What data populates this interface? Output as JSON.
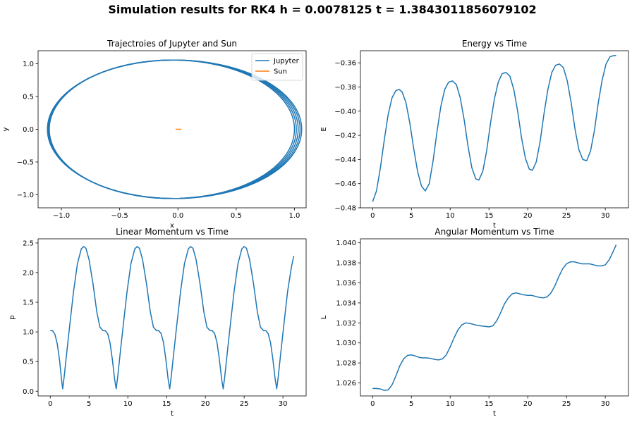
{
  "figure": {
    "title": "Simulation results for RK4 h = 0.0078125 t = 1.3843011856079102",
    "colors": {
      "series1": "#1f77b4",
      "series2": "#ff7f0e"
    }
  },
  "chart_data": [
    {
      "id": "trajectory",
      "type": "line",
      "title": "Trajectroies of Jupyter and Sun",
      "xlabel": "x",
      "ylabel": "y",
      "xlim": [
        -1.2,
        1.1
      ],
      "ylim": [
        -1.2,
        1.2
      ],
      "xticks": [
        -1.0,
        -0.5,
        0.0,
        0.5,
        1.0
      ],
      "xtick_labels": [
        "−1.0",
        "−0.5",
        "0.0",
        "0.5",
        "1.0"
      ],
      "yticks": [
        -1.0,
        -0.5,
        0.0,
        0.5,
        1.0
      ],
      "ytick_labels": [
        "−1.0",
        "−0.5",
        "0.0",
        "0.5",
        "1.0"
      ],
      "legend_position": "top-right",
      "series": [
        {
          "name": "Jupyter",
          "color": "#1f77b4",
          "kind": "ellipses",
          "orbits": [
            {
              "cx": -0.052,
              "cy": 0.0,
              "rx": 1.052,
              "ry": 1.058
            },
            {
              "cx": -0.046,
              "cy": 0.0,
              "rx": 1.062,
              "ry": 1.058
            },
            {
              "cx": -0.04,
              "cy": 0.0,
              "rx": 1.072,
              "ry": 1.058
            },
            {
              "cx": -0.034,
              "cy": 0.0,
              "rx": 1.082,
              "ry": 1.058
            },
            {
              "cx": -0.029,
              "cy": 0.0,
              "rx": 1.091,
              "ry": 1.058
            }
          ]
        },
        {
          "name": "Sun",
          "color": "#ff7f0e",
          "points": [
            [
              -0.02,
              0.0
            ],
            [
              0.03,
              0.0
            ]
          ]
        }
      ]
    },
    {
      "id": "energy",
      "type": "line",
      "title": "Energy vs Time",
      "xlabel": "t",
      "ylabel": "E",
      "xlim": [
        -1.57,
        32.99
      ],
      "ylim": [
        -0.48,
        -0.35
      ],
      "xticks": [
        0,
        5,
        10,
        15,
        20,
        25,
        30
      ],
      "xtick_labels": [
        "0",
        "5",
        "10",
        "15",
        "20",
        "25",
        "30"
      ],
      "yticks": [
        -0.48,
        -0.46,
        -0.44,
        -0.42,
        -0.4,
        -0.38,
        -0.36
      ],
      "ytick_labels": [
        "−0.48",
        "−0.46",
        "−0.44",
        "−0.42",
        "−0.40",
        "−0.38",
        "−0.36"
      ],
      "series": [
        {
          "color": "#1f77b4",
          "points": [
            [
              0.0,
              -0.475
            ],
            [
              0.5,
              -0.466
            ],
            [
              1.0,
              -0.447
            ],
            [
              1.5,
              -0.424
            ],
            [
              2.0,
              -0.403
            ],
            [
              2.5,
              -0.389
            ],
            [
              3.0,
              -0.383
            ],
            [
              3.4,
              -0.382
            ],
            [
              3.8,
              -0.384
            ],
            [
              4.3,
              -0.393
            ],
            [
              4.8,
              -0.41
            ],
            [
              5.3,
              -0.431
            ],
            [
              5.8,
              -0.45
            ],
            [
              6.3,
              -0.462
            ],
            [
              6.8,
              -0.466
            ],
            [
              7.3,
              -0.46
            ],
            [
              7.8,
              -0.441
            ],
            [
              8.3,
              -0.417
            ],
            [
              8.8,
              -0.396
            ],
            [
              9.3,
              -0.382
            ],
            [
              9.8,
              -0.376
            ],
            [
              10.3,
              -0.375
            ],
            [
              10.8,
              -0.378
            ],
            [
              11.3,
              -0.389
            ],
            [
              11.8,
              -0.407
            ],
            [
              12.3,
              -0.429
            ],
            [
              12.8,
              -0.447
            ],
            [
              13.3,
              -0.456
            ],
            [
              13.7,
              -0.457
            ],
            [
              14.2,
              -0.45
            ],
            [
              14.7,
              -0.433
            ],
            [
              15.2,
              -0.41
            ],
            [
              15.7,
              -0.39
            ],
            [
              16.2,
              -0.376
            ],
            [
              16.7,
              -0.369
            ],
            [
              17.2,
              -0.368
            ],
            [
              17.7,
              -0.371
            ],
            [
              18.2,
              -0.382
            ],
            [
              18.7,
              -0.4
            ],
            [
              19.2,
              -0.422
            ],
            [
              19.7,
              -0.439
            ],
            [
              20.2,
              -0.448
            ],
            [
              20.6,
              -0.449
            ],
            [
              21.1,
              -0.442
            ],
            [
              21.6,
              -0.425
            ],
            [
              22.1,
              -0.402
            ],
            [
              22.6,
              -0.382
            ],
            [
              23.1,
              -0.368
            ],
            [
              23.6,
              -0.362
            ],
            [
              24.1,
              -0.361
            ],
            [
              24.6,
              -0.364
            ],
            [
              25.1,
              -0.375
            ],
            [
              25.6,
              -0.393
            ],
            [
              26.1,
              -0.415
            ],
            [
              26.6,
              -0.432
            ],
            [
              27.1,
              -0.44
            ],
            [
              27.6,
              -0.441
            ],
            [
              28.1,
              -0.433
            ],
            [
              28.6,
              -0.416
            ],
            [
              29.1,
              -0.393
            ],
            [
              29.6,
              -0.374
            ],
            [
              30.1,
              -0.361
            ],
            [
              30.6,
              -0.355
            ],
            [
              31.1,
              -0.354
            ],
            [
              31.4,
              -0.354
            ]
          ]
        }
      ]
    },
    {
      "id": "linear-momentum",
      "type": "line",
      "title": "Linear Momentum vs Time",
      "xlabel": "t",
      "ylabel": "p",
      "xlim": [
        -1.57,
        32.99
      ],
      "ylim": [
        -0.08,
        2.57
      ],
      "xticks": [
        0,
        5,
        10,
        15,
        20,
        25,
        30
      ],
      "xtick_labels": [
        "0",
        "5",
        "10",
        "15",
        "20",
        "25",
        "30"
      ],
      "yticks": [
        0.0,
        0.5,
        1.0,
        1.5,
        2.0,
        2.5
      ],
      "ytick_labels": [
        "0.0",
        "0.5",
        "1.0",
        "1.5",
        "2.0",
        "2.5"
      ],
      "series": [
        {
          "color": "#1f77b4",
          "points": [
            [
              0.0,
              1.02
            ],
            [
              0.3,
              1.02
            ],
            [
              0.6,
              0.96
            ],
            [
              0.9,
              0.8
            ],
            [
              1.2,
              0.52
            ],
            [
              1.45,
              0.2
            ],
            [
              1.6,
              0.04
            ],
            [
              1.8,
              0.25
            ],
            [
              2.1,
              0.62
            ],
            [
              2.5,
              1.1
            ],
            [
              3.0,
              1.68
            ],
            [
              3.5,
              2.15
            ],
            [
              4.0,
              2.4
            ],
            [
              4.3,
              2.44
            ],
            [
              4.6,
              2.41
            ],
            [
              5.0,
              2.22
            ],
            [
              5.5,
              1.82
            ],
            [
              6.0,
              1.34
            ],
            [
              6.4,
              1.08
            ],
            [
              6.8,
              1.02
            ],
            [
              7.1,
              1.02
            ],
            [
              7.4,
              0.97
            ],
            [
              7.7,
              0.82
            ],
            [
              8.0,
              0.54
            ],
            [
              8.3,
              0.2
            ],
            [
              8.5,
              0.04
            ],
            [
              8.7,
              0.25
            ],
            [
              9.0,
              0.62
            ],
            [
              9.4,
              1.1
            ],
            [
              9.9,
              1.68
            ],
            [
              10.4,
              2.15
            ],
            [
              10.9,
              2.4
            ],
            [
              11.2,
              2.44
            ],
            [
              11.5,
              2.41
            ],
            [
              11.9,
              2.22
            ],
            [
              12.4,
              1.82
            ],
            [
              12.9,
              1.34
            ],
            [
              13.3,
              1.08
            ],
            [
              13.7,
              1.02
            ],
            [
              14.0,
              1.02
            ],
            [
              14.3,
              0.97
            ],
            [
              14.6,
              0.82
            ],
            [
              14.9,
              0.54
            ],
            [
              15.2,
              0.2
            ],
            [
              15.4,
              0.04
            ],
            [
              15.6,
              0.25
            ],
            [
              15.9,
              0.62
            ],
            [
              16.3,
              1.1
            ],
            [
              16.8,
              1.68
            ],
            [
              17.3,
              2.15
            ],
            [
              17.8,
              2.4
            ],
            [
              18.1,
              2.44
            ],
            [
              18.4,
              2.41
            ],
            [
              18.8,
              2.22
            ],
            [
              19.3,
              1.82
            ],
            [
              19.8,
              1.34
            ],
            [
              20.2,
              1.08
            ],
            [
              20.6,
              1.02
            ],
            [
              20.9,
              1.02
            ],
            [
              21.2,
              0.97
            ],
            [
              21.5,
              0.82
            ],
            [
              21.8,
              0.54
            ],
            [
              22.1,
              0.2
            ],
            [
              22.3,
              0.04
            ],
            [
              22.5,
              0.25
            ],
            [
              22.8,
              0.62
            ],
            [
              23.2,
              1.1
            ],
            [
              23.7,
              1.68
            ],
            [
              24.2,
              2.15
            ],
            [
              24.7,
              2.4
            ],
            [
              25.0,
              2.44
            ],
            [
              25.3,
              2.41
            ],
            [
              25.7,
              2.22
            ],
            [
              26.2,
              1.82
            ],
            [
              26.7,
              1.34
            ],
            [
              27.1,
              1.08
            ],
            [
              27.5,
              1.02
            ],
            [
              27.8,
              1.02
            ],
            [
              28.1,
              0.97
            ],
            [
              28.4,
              0.82
            ],
            [
              28.7,
              0.54
            ],
            [
              29.0,
              0.2
            ],
            [
              29.2,
              0.04
            ],
            [
              29.4,
              0.25
            ],
            [
              29.7,
              0.62
            ],
            [
              30.1,
              1.1
            ],
            [
              30.6,
              1.68
            ],
            [
              31.1,
              2.1
            ],
            [
              31.4,
              2.28
            ]
          ]
        }
      ]
    },
    {
      "id": "angular-momentum",
      "type": "line",
      "title": "Angular Momentum vs Time",
      "xlabel": "t",
      "ylabel": "L",
      "xlim": [
        -1.57,
        32.99
      ],
      "ylim": [
        1.0247,
        1.0404
      ],
      "xticks": [
        0,
        5,
        10,
        15,
        20,
        25,
        30
      ],
      "xtick_labels": [
        "0",
        "5",
        "10",
        "15",
        "20",
        "25",
        "30"
      ],
      "yticks": [
        1.026,
        1.028,
        1.03,
        1.032,
        1.034,
        1.036,
        1.038,
        1.04
      ],
      "ytick_labels": [
        "1.026",
        "1.028",
        "1.030",
        "1.032",
        "1.034",
        "1.036",
        "1.038",
        "1.040"
      ],
      "series": [
        {
          "color": "#1f77b4",
          "points": [
            [
              0.0,
              1.02545
            ],
            [
              0.5,
              1.02545
            ],
            [
              1.0,
              1.0254
            ],
            [
              1.5,
              1.02525
            ],
            [
              2.0,
              1.0253
            ],
            [
              2.5,
              1.0258
            ],
            [
              3.0,
              1.0267
            ],
            [
              3.5,
              1.0277
            ],
            [
              4.0,
              1.0284
            ],
            [
              4.5,
              1.02875
            ],
            [
              5.0,
              1.0288
            ],
            [
              5.5,
              1.0287
            ],
            [
              6.0,
              1.02855
            ],
            [
              6.5,
              1.0285
            ],
            [
              7.0,
              1.0285
            ],
            [
              7.5,
              1.02845
            ],
            [
              8.0,
              1.02835
            ],
            [
              8.5,
              1.0283
            ],
            [
              9.0,
              1.0284
            ],
            [
              9.5,
              1.0288
            ],
            [
              10.0,
              1.0296
            ],
            [
              10.5,
              1.0305
            ],
            [
              11.0,
              1.0313
            ],
            [
              11.5,
              1.0318
            ],
            [
              12.0,
              1.032
            ],
            [
              12.5,
              1.03195
            ],
            [
              13.0,
              1.03185
            ],
            [
              13.5,
              1.03175
            ],
            [
              14.0,
              1.0317
            ],
            [
              14.5,
              1.03165
            ],
            [
              15.0,
              1.0316
            ],
            [
              15.5,
              1.0317
            ],
            [
              16.0,
              1.0322
            ],
            [
              16.5,
              1.033
            ],
            [
              17.0,
              1.0339
            ],
            [
              17.5,
              1.0345
            ],
            [
              18.0,
              1.0349
            ],
            [
              18.5,
              1.035
            ],
            [
              19.0,
              1.0349
            ],
            [
              19.5,
              1.0348
            ],
            [
              20.0,
              1.03475
            ],
            [
              20.5,
              1.03475
            ],
            [
              21.0,
              1.03465
            ],
            [
              21.5,
              1.03455
            ],
            [
              22.0,
              1.0345
            ],
            [
              22.5,
              1.0346
            ],
            [
              23.0,
              1.035
            ],
            [
              23.5,
              1.0357
            ],
            [
              24.0,
              1.0366
            ],
            [
              24.5,
              1.0374
            ],
            [
              25.0,
              1.0379
            ],
            [
              25.5,
              1.0381
            ],
            [
              26.0,
              1.0381
            ],
            [
              26.5,
              1.038
            ],
            [
              27.0,
              1.0379
            ],
            [
              27.5,
              1.0379
            ],
            [
              28.0,
              1.0379
            ],
            [
              28.5,
              1.0378
            ],
            [
              29.0,
              1.0377
            ],
            [
              29.5,
              1.0377
            ],
            [
              30.0,
              1.0378
            ],
            [
              30.5,
              1.0383
            ],
            [
              31.0,
              1.0391
            ],
            [
              31.4,
              1.0398
            ]
          ]
        }
      ]
    }
  ]
}
